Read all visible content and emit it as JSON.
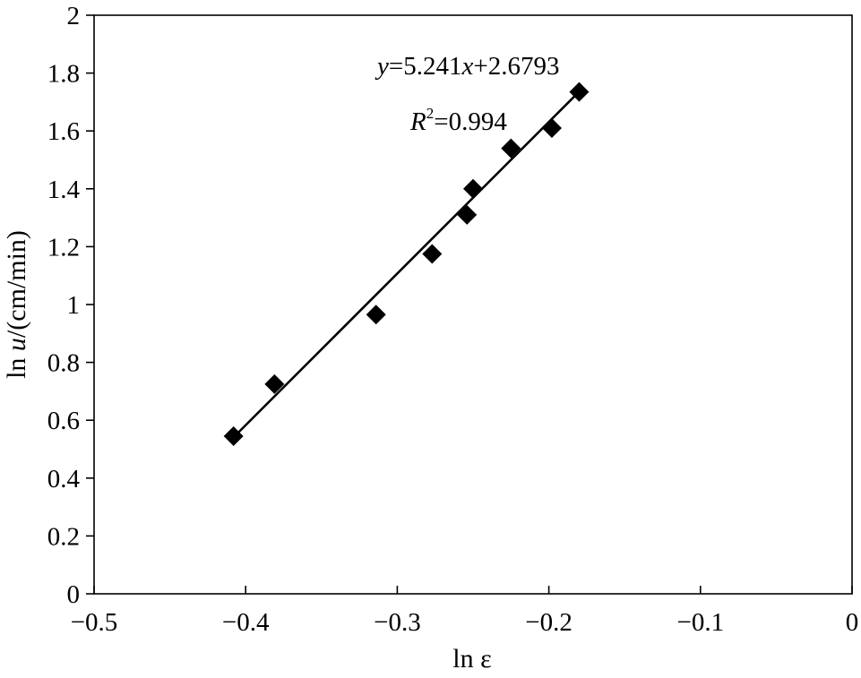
{
  "chart_data": {
    "type": "scatter",
    "xlabel_prefix": "ln ",
    "xlabel_symbol": "ε",
    "ylabel_prefix": "ln ",
    "ylabel_symbol": "u",
    "ylabel_suffix": "/(cm/min)",
    "xlim": [
      -0.5,
      0
    ],
    "ylim": [
      0,
      2
    ],
    "x_ticks": [
      -0.5,
      -0.4,
      -0.3,
      -0.2,
      -0.1,
      0
    ],
    "x_tick_labels": [
      "−0.5",
      "−0.4",
      "−0.3",
      "−0.2",
      "−0.1",
      "0"
    ],
    "y_ticks": [
      0,
      0.2,
      0.4,
      0.6,
      0.8,
      1,
      1.2,
      1.4,
      1.6,
      1.8,
      2
    ],
    "y_tick_labels": [
      "0",
      "0.2",
      "0.4",
      "0.6",
      "0.8",
      "1",
      "1.2",
      "1.4",
      "1.6",
      "1.8",
      "2"
    ],
    "grid": false,
    "series": [
      {
        "marker": "diamond",
        "color": "#000000",
        "points": [
          {
            "x": -0.408,
            "y": 0.545
          },
          {
            "x": -0.381,
            "y": 0.725
          },
          {
            "x": -0.314,
            "y": 0.965
          },
          {
            "x": -0.277,
            "y": 1.175
          },
          {
            "x": -0.254,
            "y": 1.31
          },
          {
            "x": -0.25,
            "y": 1.4
          },
          {
            "x": -0.225,
            "y": 1.54
          },
          {
            "x": -0.198,
            "y": 1.61
          },
          {
            "x": -0.18,
            "y": 1.735
          }
        ]
      }
    ],
    "fit_line": {
      "slope": 5.241,
      "intercept": 2.6793,
      "x_range": [
        -0.408,
        -0.18
      ],
      "color": "#000000"
    },
    "annotations": {
      "equation": {
        "y_var": "y",
        "eq_text": "=5.241",
        "x_var": "x",
        "const_text": "+2.6793"
      },
      "r_squared": {
        "var": "R",
        "sup": "2",
        "value_text": "=0.994"
      }
    }
  }
}
